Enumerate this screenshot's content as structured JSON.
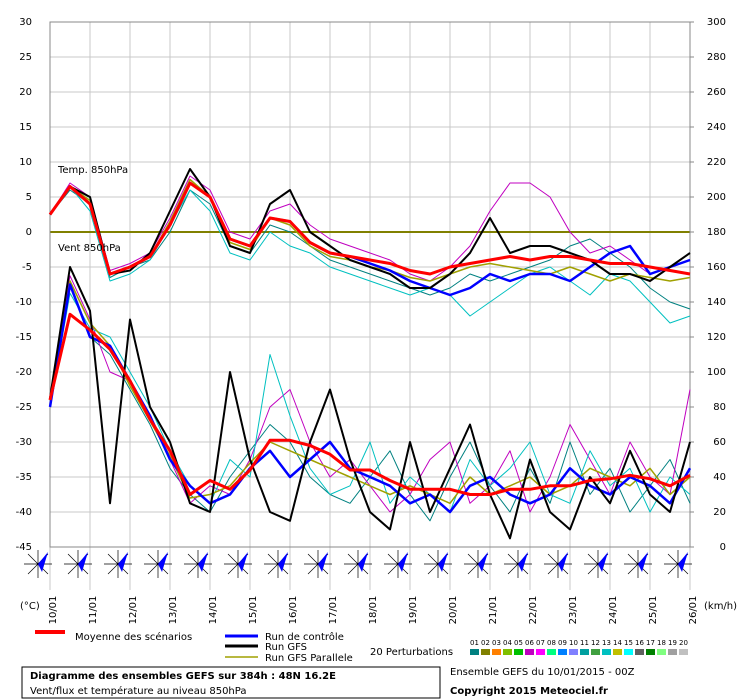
{
  "chart_data": {
    "type": "line",
    "title": "Diagramme des ensembles GEFS sur 384h : 48N 16.2E",
    "subtitle": "Vent/flux et température au niveau 850hPa",
    "run_info": "Ensemble GEFS du 10/01/2015 - 00Z",
    "copyright": "Copyright 2015 Meteociel.fr",
    "annotations": [
      "Temp. 850hPa",
      "Vent 850hPa"
    ],
    "y_label": "(°C)",
    "y2_label": "(km/h)",
    "x": [
      0,
      0.5,
      1,
      1.5,
      2,
      2.5,
      3,
      3.5,
      4,
      4.5,
      5,
      5.5,
      6,
      6.5,
      7,
      7.5,
      8,
      8.5,
      9,
      9.5,
      10,
      10.5,
      11,
      11.5,
      12,
      12.5,
      13,
      13.5,
      14,
      14.5,
      15,
      15.5,
      16
    ],
    "xlim": [
      0,
      16
    ],
    "xticks": [
      {
        "value": 0,
        "label": "10/01"
      },
      {
        "value": 1,
        "label": "11/01"
      },
      {
        "value": 2,
        "label": "12/01"
      },
      {
        "value": 3,
        "label": "13/01"
      },
      {
        "value": 4,
        "label": "14/01"
      },
      {
        "value": 5,
        "label": "15/01"
      },
      {
        "value": 6,
        "label": "16/01"
      },
      {
        "value": 7,
        "label": "17/01"
      },
      {
        "value": 8,
        "label": "18/01"
      },
      {
        "value": 9,
        "label": "19/01"
      },
      {
        "value": 10,
        "label": "20/01"
      },
      {
        "value": 11,
        "label": "21/01"
      },
      {
        "value": 12,
        "label": "22/01"
      },
      {
        "value": 13,
        "label": "23/01"
      },
      {
        "value": 14,
        "label": "24/01"
      },
      {
        "value": 15,
        "label": "25/01"
      },
      {
        "value": 16,
        "label": "26/01"
      }
    ],
    "ylim": [
      -45,
      30
    ],
    "yticks": [
      -45,
      -40,
      -35,
      -30,
      -25,
      -20,
      -15,
      -10,
      -5,
      0,
      5,
      10,
      15,
      20,
      25,
      30
    ],
    "y2lim": [
      0,
      300
    ],
    "y2ticks": [
      0,
      20,
      40,
      60,
      80,
      100,
      120,
      140,
      160,
      180,
      200,
      220,
      240,
      260,
      280,
      300
    ],
    "grid": true,
    "series": [
      {
        "name": "01",
        "color": "#008080",
        "width": 1,
        "values": [
          2.5,
          6,
          4,
          -6.5,
          -5,
          -4,
          0,
          6,
          4,
          -2,
          -3,
          1,
          0,
          -2,
          -4,
          -5,
          -6,
          -7,
          -8,
          -9,
          -8,
          -6,
          -7,
          -6,
          -5,
          -4,
          -2,
          -1,
          -3,
          -5,
          -8,
          -10,
          -11
        ]
      },
      {
        "name": "06",
        "color": "#c000c0",
        "width": 1,
        "values": [
          2.5,
          7,
          5,
          -5.5,
          -4.5,
          -3,
          2,
          8,
          6,
          0,
          -1,
          3,
          4,
          1,
          -1,
          -2,
          -3,
          -4,
          -6,
          -7,
          -5,
          -2,
          3,
          7,
          7,
          5,
          0,
          -3,
          -2,
          -4,
          -6,
          -5,
          -4
        ]
      },
      {
        "name": "13",
        "color": "#00c0c0",
        "width": 1,
        "values": [
          2.5,
          6.5,
          3,
          -7,
          -6,
          -4,
          1,
          6,
          3,
          -3,
          -4,
          0,
          -2,
          -3,
          -5,
          -6,
          -7,
          -8,
          -9,
          -8,
          -9,
          -12,
          -10,
          -8,
          -6,
          -5,
          -7,
          -9,
          -6,
          -7,
          -10,
          -13,
          -12
        ]
      },
      {
        "name": "01",
        "color": "#008080",
        "width": 1,
        "axis": "y2",
        "values": [
          80,
          150,
          120,
          110,
          90,
          70,
          45,
          30,
          20,
          40,
          55,
          70,
          60,
          40,
          30,
          25,
          40,
          55,
          30,
          15,
          40,
          60,
          35,
          20,
          45,
          25,
          60,
          30,
          45,
          20,
          35,
          50,
          25
        ]
      },
      {
        "name": "06",
        "color": "#c000c0",
        "width": 1,
        "axis": "y2",
        "values": [
          85,
          155,
          130,
          100,
          95,
          75,
          50,
          25,
          35,
          30,
          50,
          80,
          90,
          60,
          40,
          50,
          35,
          20,
          30,
          50,
          60,
          25,
          35,
          55,
          20,
          40,
          70,
          50,
          30,
          60,
          40,
          30,
          90
        ]
      },
      {
        "name": "13",
        "color": "#00c0c0",
        "width": 1,
        "axis": "y2",
        "values": [
          80,
          145,
          125,
          120,
          100,
          80,
          55,
          35,
          25,
          50,
          40,
          110,
          75,
          45,
          30,
          35,
          60,
          25,
          40,
          30,
          20,
          50,
          35,
          45,
          60,
          30,
          25,
          55,
          35,
          45,
          20,
          40,
          30
        ]
      },
      {
        "name": "Run GFS Parallele",
        "color": "#a0a000",
        "width": 1.5,
        "values": [
          2.5,
          6.5,
          4.5,
          -6,
          -5,
          -3.5,
          1.5,
          7.5,
          5,
          -1.5,
          -2.5,
          2,
          1,
          -2,
          -3.5,
          -4,
          -5,
          -5.5,
          -6.5,
          -7,
          -6,
          -5,
          -4.5,
          -5,
          -5.5,
          -6,
          -5,
          -6,
          -7,
          -6,
          -6.5,
          -7,
          -6.5
        ]
      },
      {
        "name": "Run GFS Parallele",
        "color": "#a0a000",
        "width": 1.5,
        "axis": "y2",
        "values": [
          82,
          152,
          128,
          115,
          92,
          72,
          52,
          28,
          30,
          35,
          48,
          60,
          55,
          50,
          45,
          40,
          35,
          30,
          35,
          30,
          25,
          40,
          30,
          35,
          40,
          30,
          35,
          45,
          40,
          35,
          45,
          30,
          40
        ]
      },
      {
        "name": "Run de contrôle",
        "color": "#0000ff",
        "width": 2.5,
        "values": [
          2.5,
          6.5,
          4,
          -6,
          -5,
          -3.5,
          1,
          7,
          5,
          -1,
          -2,
          2,
          1.5,
          -1.5,
          -3,
          -3.5,
          -4.5,
          -5.5,
          -7,
          -8,
          -9,
          -8,
          -6,
          -7,
          -6,
          -6,
          -7,
          -5,
          -3,
          -2,
          -6,
          -5,
          -4
        ]
      },
      {
        "name": "Run de contrôle",
        "color": "#0000ff",
        "width": 2.5,
        "axis": "y2",
        "values": [
          80,
          150,
          120,
          115,
          95,
          75,
          50,
          35,
          25,
          30,
          45,
          55,
          40,
          50,
          60,
          45,
          40,
          35,
          25,
          30,
          20,
          35,
          40,
          30,
          25,
          30,
          45,
          35,
          30,
          40,
          35,
          25,
          45
        ]
      },
      {
        "name": "Run GFS",
        "color": "#000000",
        "width": 2,
        "values": [
          2.5,
          6.5,
          5,
          -6,
          -5.5,
          -3,
          3,
          9,
          5,
          -2,
          -3,
          4,
          6,
          0,
          -2,
          -4,
          -5,
          -6,
          -8,
          -8,
          -6,
          -3,
          2,
          -3,
          -2,
          -2,
          -3,
          -4,
          -6,
          -6,
          -7,
          -5,
          -3
        ]
      },
      {
        "name": "Run GFS",
        "color": "#000000",
        "width": 2,
        "axis": "y2",
        "values": [
          85,
          160,
          135,
          25,
          130,
          80,
          60,
          25,
          20,
          100,
          50,
          20,
          15,
          60,
          90,
          50,
          20,
          10,
          60,
          20,
          45,
          70,
          30,
          5,
          50,
          20,
          10,
          40,
          25,
          55,
          30,
          20,
          60
        ]
      },
      {
        "name": "Moyenne des scénarios",
        "color": "#ff0000",
        "width": 3,
        "values": [
          2.5,
          6.5,
          4,
          -6,
          -5,
          -3.5,
          1,
          7,
          5,
          -1,
          -2,
          2,
          1.5,
          -1.5,
          -3,
          -3.5,
          -4,
          -4.5,
          -5.5,
          -6,
          -5,
          -4.5,
          -4,
          -3.5,
          -4,
          -3.5,
          -3.5,
          -4,
          -4.5,
          -4.5,
          -5,
          -5.5,
          -6
        ]
      },
      {
        "name": "Moyenne des scénarios",
        "color": "#ff0000",
        "width": 3,
        "axis": "y2",
        "values": [
          84,
          133,
          124,
          113,
          95,
          73,
          55,
          30,
          38,
          33,
          44,
          61,
          61,
          58,
          53,
          44,
          44,
          38,
          33,
          33,
          33,
          30,
          30,
          33,
          33,
          35,
          35,
          38,
          39,
          41,
          39,
          35,
          41
        ]
      }
    ],
    "legend": [
      {
        "name": "Moyenne des scénarios",
        "color": "#ff0000"
      },
      {
        "name": "Run de contrôle",
        "color": "#0000ff"
      },
      {
        "name": "Run GFS",
        "color": "#000000"
      },
      {
        "name": "Run GFS Parallele",
        "color": "#a0a000"
      }
    ],
    "perturbations": {
      "label": "20 Perturbations",
      "members": [
        {
          "name": "01",
          "color": "#008080"
        },
        {
          "name": "02",
          "color": "#808000"
        },
        {
          "name": "03",
          "color": "#ff8000"
        },
        {
          "name": "04",
          "color": "#80c000"
        },
        {
          "name": "05",
          "color": "#00c000"
        },
        {
          "name": "06",
          "color": "#c000c0"
        },
        {
          "name": "07",
          "color": "#ff00ff"
        },
        {
          "name": "08",
          "color": "#00ff80"
        },
        {
          "name": "09",
          "color": "#0080ff"
        },
        {
          "name": "10",
          "color": "#8080ff"
        },
        {
          "name": "11",
          "color": "#00a0a0"
        },
        {
          "name": "12",
          "color": "#40a040"
        },
        {
          "name": "13",
          "color": "#00c0c0"
        },
        {
          "name": "14",
          "color": "#c0c000"
        },
        {
          "name": "15",
          "color": "#00ffff"
        },
        {
          "name": "16",
          "color": "#606060"
        },
        {
          "name": "17",
          "color": "#008000"
        },
        {
          "name": "18",
          "color": "#80ff80"
        },
        {
          "name": "19",
          "color": "#a0a0a0"
        },
        {
          "name": "20",
          "color": "#c0c0c0"
        }
      ]
    }
  }
}
